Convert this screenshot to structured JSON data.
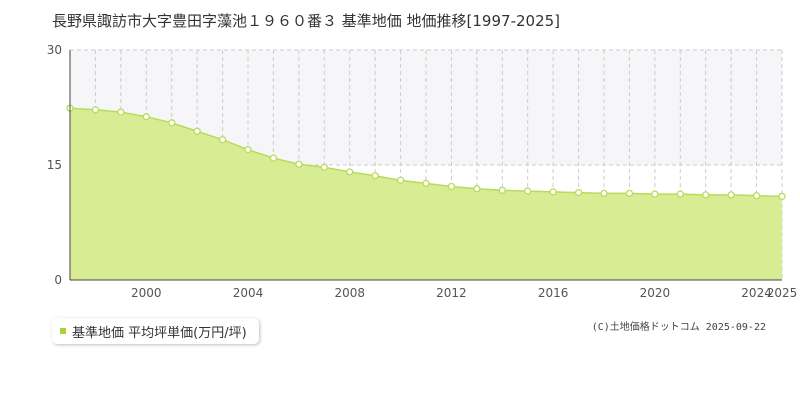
{
  "chart_data": {
    "type": "area",
    "title": "長野県諏訪市大字豊田字藻池１９６０番３ 基準地価 地価推移[1997-2025]",
    "x": [
      1997,
      1998,
      1999,
      2000,
      2001,
      2002,
      2003,
      2004,
      2005,
      2006,
      2007,
      2008,
      2009,
      2010,
      2011,
      2012,
      2013,
      2014,
      2015,
      2016,
      2017,
      2018,
      2019,
      2020,
      2021,
      2022,
      2023,
      2024,
      2025
    ],
    "series": [
      {
        "name": "基準地価 平均坪単価(万円/坪)",
        "values": [
          22.4,
          22.2,
          21.9,
          21.3,
          20.5,
          19.4,
          18.3,
          17.0,
          15.9,
          15.1,
          14.7,
          14.1,
          13.6,
          13.0,
          12.6,
          12.2,
          11.9,
          11.7,
          11.6,
          11.5,
          11.4,
          11.3,
          11.3,
          11.2,
          11.2,
          11.1,
          11.1,
          11.0,
          10.9
        ]
      }
    ],
    "xticks": [
      2000,
      2004,
      2008,
      2012,
      2016,
      2020,
      2024,
      2025
    ],
    "xtick_labels": [
      "2000",
      "2004",
      "2008",
      "2012",
      "2016",
      "2020",
      "2024",
      "2025"
    ],
    "yticks": [
      0,
      15,
      30
    ],
    "ytick_labels": [
      "0",
      "15",
      "30"
    ],
    "ylim": [
      0,
      30
    ],
    "xlim": [
      1997,
      2025
    ],
    "grid": true,
    "legend": "bottom-left",
    "colors": {
      "fill": "#d8ec94",
      "line": "#b8dc5a",
      "marker_stroke": "#b8dc5a",
      "marker_fill": "#ffffff",
      "upper_band": "#f6f6f9",
      "grid": "#cccccc",
      "legend_swatch": "#a8d43a"
    }
  },
  "footer": {
    "copyright": "(C)土地価格ドットコム 2025-09-22"
  }
}
